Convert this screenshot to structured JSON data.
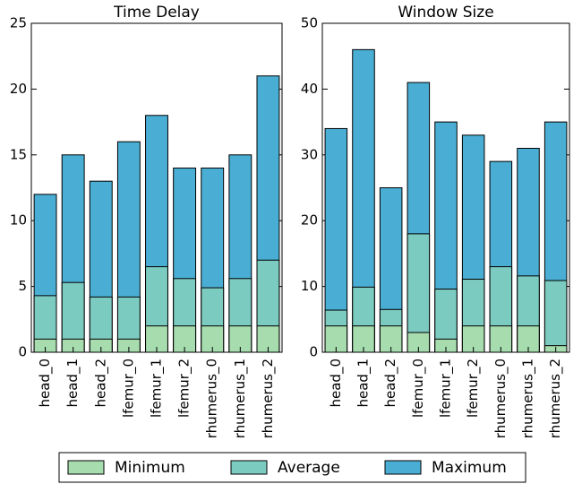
{
  "chart_data": [
    {
      "type": "bar",
      "title": "Time Delay",
      "categories": [
        "head_0",
        "head_1",
        "head_2",
        "lfemur_0",
        "lfemur_1",
        "lfemur_2",
        "rhumerus_0",
        "rhumerus_1",
        "rhumerus_2"
      ],
      "series": [
        {
          "name": "Minimum",
          "color": "#a6dcae",
          "values": [
            1,
            1,
            1,
            1,
            2,
            2,
            2,
            2,
            2
          ]
        },
        {
          "name": "Average",
          "color": "#7ccbc1",
          "values": [
            4.3,
            5.3,
            4.2,
            4.2,
            6.5,
            5.6,
            4.9,
            5.6,
            7.0
          ]
        },
        {
          "name": "Maximum",
          "color": "#4aaed4",
          "values": [
            12,
            15,
            13,
            16,
            18,
            14,
            14,
            15,
            21
          ]
        }
      ],
      "ylim": [
        0,
        25
      ],
      "yticks": [
        0,
        5,
        10,
        15,
        20,
        25
      ]
    },
    {
      "type": "bar",
      "title": "Window Size",
      "categories": [
        "head_0",
        "head_1",
        "head_2",
        "lfemur_0",
        "lfemur_1",
        "lfemur_2",
        "rhumerus_0",
        "rhumerus_1",
        "rhumerus_2"
      ],
      "series": [
        {
          "name": "Minimum",
          "color": "#a6dcae",
          "values": [
            4,
            4,
            4,
            3,
            2,
            4,
            4,
            4,
            1
          ]
        },
        {
          "name": "Average",
          "color": "#7ccbc1",
          "values": [
            6.4,
            9.9,
            6.5,
            18,
            9.6,
            11.1,
            13,
            11.6,
            10.9
          ]
        },
        {
          "name": "Maximum",
          "color": "#4aaed4",
          "values": [
            34,
            46,
            25,
            41,
            35,
            33,
            29,
            31,
            35
          ]
        }
      ],
      "ylim": [
        0,
        50
      ],
      "yticks": [
        0,
        10,
        20,
        30,
        40,
        50
      ]
    }
  ]
}
